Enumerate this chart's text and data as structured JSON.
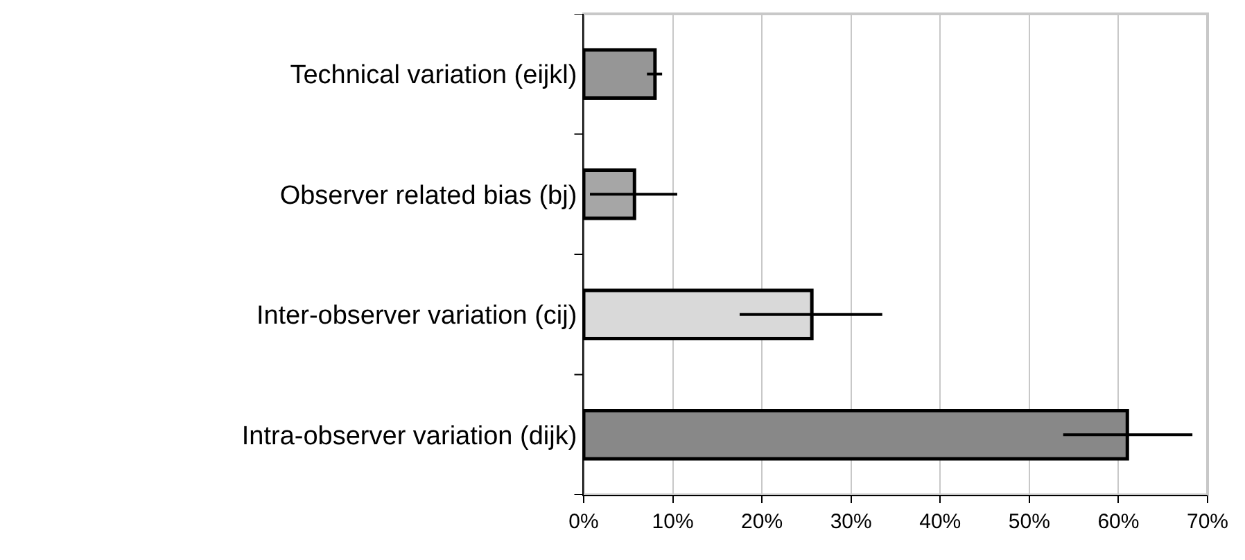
{
  "chart_data": {
    "type": "bar",
    "orientation": "horizontal",
    "categories": [
      "Technical variation (eijkl)",
      "Observer related bias (bj)",
      "Inter-observer variation (cij)",
      "Intra-observer variation (dijk)"
    ],
    "values": [
      8.0,
      5.7,
      25.6,
      61.0
    ],
    "colors": [
      "#969696",
      "#a6a6a6",
      "#d9d9d9",
      "#888888"
    ],
    "errors": [
      [
        7.1,
        8.8
      ],
      [
        0.7,
        10.5
      ],
      [
        17.5,
        33.5
      ],
      [
        53.8,
        68.3
      ]
    ],
    "xlim": [
      0,
      70
    ],
    "xticks": [
      {
        "value": 0,
        "label": "0%"
      },
      {
        "value": 10,
        "label": "10%"
      },
      {
        "value": 20,
        "label": "20%"
      },
      {
        "value": 30,
        "label": "30%"
      },
      {
        "value": 40,
        "label": "40%"
      },
      {
        "value": 50,
        "label": "50%"
      },
      {
        "value": 60,
        "label": "60%"
      },
      {
        "value": 70,
        "label": "70%"
      }
    ],
    "grid": "x",
    "legend": false
  }
}
